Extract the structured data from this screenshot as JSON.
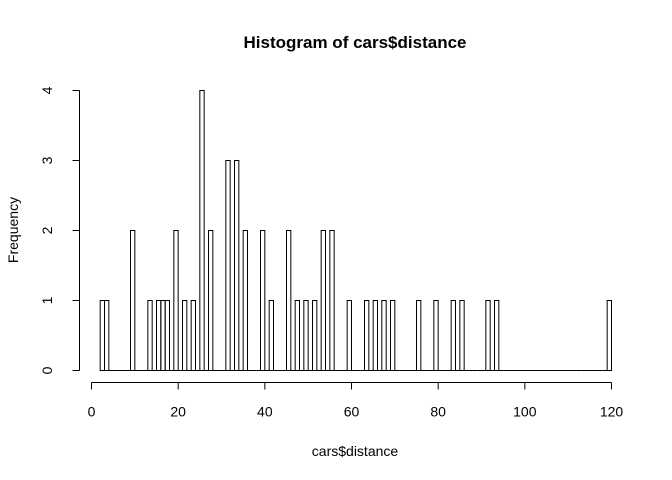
{
  "chart_data": {
    "type": "bar",
    "title": "Histogram of cars$distance",
    "xlabel": "cars$distance",
    "ylabel": "Frequency",
    "xlim": [
      0,
      120
    ],
    "ylim": [
      0,
      4
    ],
    "x_ticks": [
      0,
      20,
      40,
      60,
      80,
      100,
      120
    ],
    "y_ticks": [
      0,
      1,
      2,
      3,
      4
    ],
    "bin_width": 1,
    "bin_start": 2,
    "counts": [
      1,
      1,
      0,
      0,
      0,
      0,
      0,
      2,
      0,
      0,
      0,
      1,
      0,
      1,
      1,
      1,
      0,
      2,
      0,
      1,
      0,
      1,
      0,
      4,
      0,
      2,
      0,
      0,
      0,
      3,
      0,
      3,
      0,
      2,
      0,
      0,
      0,
      2,
      0,
      1,
      0,
      0,
      0,
      2,
      0,
      1,
      0,
      1,
      0,
      1,
      0,
      2,
      0,
      2,
      0,
      0,
      0,
      1,
      0,
      0,
      0,
      1,
      0,
      1,
      0,
      1,
      0,
      1,
      0,
      0,
      0,
      0,
      0,
      1,
      0,
      0,
      0,
      1,
      0,
      0,
      0,
      1,
      0,
      1,
      0,
      0,
      0,
      0,
      0,
      1,
      0,
      1,
      0,
      0,
      0,
      0,
      0,
      0,
      0,
      0,
      0,
      0,
      0,
      0,
      0,
      0,
      0,
      0,
      0,
      0,
      0,
      0,
      0,
      0,
      0,
      0,
      0,
      1
    ],
    "grid": false
  }
}
